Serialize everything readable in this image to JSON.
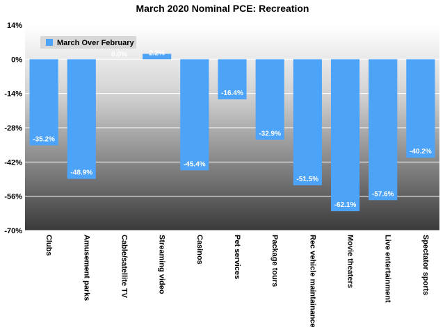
{
  "chart_data": {
    "type": "bar",
    "title": "March 2020 Nominal PCE: Recreation",
    "xlabel": "",
    "ylabel": "",
    "categories": [
      "Clubs",
      "Amusement parks",
      "Cable/satellite TV",
      "Streaming video",
      "Casinos",
      "Pet services",
      "Package tours",
      "Rec vehicle maintainance",
      "Movie theaters",
      "Live entertainment",
      "Spectator sports"
    ],
    "series": [
      {
        "name": "March Over February",
        "values": [
          -35.2,
          -48.9,
          0.0,
          2.2,
          -45.4,
          -16.4,
          -32.9,
          -51.5,
          -62.1,
          -57.6,
          -40.2
        ],
        "labels": [
          "-35.2%",
          "-48.9%",
          "0.0%",
          "2.2%",
          "-45.4%",
          "-16.4%",
          "-32.9%",
          "-51.5%",
          "-62.1%",
          "-57.6%",
          "-40.2%"
        ]
      }
    ],
    "ylim": [
      -70,
      14
    ],
    "yticks": [
      14,
      0,
      -14,
      -28,
      -42,
      -56,
      -70
    ],
    "ytick_labels": [
      "14%",
      "0%",
      "-14%",
      "-28%",
      "-42%",
      "-56%",
      "-70%"
    ],
    "grid": true,
    "legend_position": "top-left",
    "colors": {
      "bar": "#4da3f7",
      "plot_bg_top": "#ffffff",
      "plot_bg_bottom": "#3a3a3a",
      "grid": "#ffffff"
    }
  }
}
